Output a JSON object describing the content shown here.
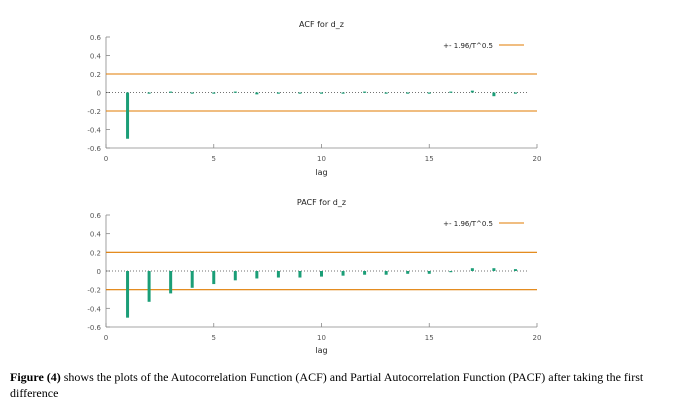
{
  "chart_data": [
    {
      "type": "bar",
      "title": "ACF for d_z",
      "xlabel": "lag",
      "ylabel": "",
      "xlim": [
        0,
        20
      ],
      "ylim": [
        -0.6,
        0.6
      ],
      "xticks": [
        "0",
        "5",
        "10",
        "15",
        "20"
      ],
      "yticks": [
        "0.6",
        "0.4",
        "0.2",
        "0",
        "-0.2",
        "-0.4",
        "-0.6"
      ],
      "legend": {
        "label": "+- 1.96/T^0.5",
        "position": "top-right"
      },
      "confidence_band": 0.2,
      "lags": [
        1,
        2,
        3,
        4,
        5,
        6,
        7,
        8,
        9,
        10,
        11,
        12,
        13,
        14,
        15,
        16,
        17,
        18,
        19
      ],
      "values": [
        -0.5,
        0.0,
        0.01,
        0.0,
        0.0,
        0.01,
        -0.02,
        0.0,
        0.0,
        0.0,
        0.0,
        0.01,
        -0.01,
        0.0,
        0.0,
        0.01,
        0.02,
        -0.04,
        0.0
      ],
      "colors": {
        "bars": "#1b9e77",
        "band": "#e07b00",
        "zero": "#444444"
      }
    },
    {
      "type": "bar",
      "title": "PACF for d_z",
      "xlabel": "lag",
      "ylabel": "",
      "xlim": [
        0,
        20
      ],
      "ylim": [
        -0.6,
        0.6
      ],
      "xticks": [
        "0",
        "5",
        "10",
        "15",
        "20"
      ],
      "yticks": [
        "0.6",
        "0.4",
        "0.2",
        "0",
        "-0.2",
        "-0.4",
        "-0.6"
      ],
      "legend": {
        "label": "+- 1.96/T^0.5",
        "position": "top-right"
      },
      "confidence_band": 0.2,
      "lags": [
        1,
        2,
        3,
        4,
        5,
        6,
        7,
        8,
        9,
        10,
        11,
        12,
        13,
        14,
        15,
        16,
        17,
        18,
        19
      ],
      "values": [
        -0.5,
        -0.33,
        -0.24,
        -0.18,
        -0.14,
        -0.1,
        -0.08,
        -0.07,
        -0.07,
        -0.06,
        -0.05,
        -0.04,
        -0.04,
        -0.03,
        -0.03,
        -0.01,
        0.03,
        0.03,
        0.02
      ],
      "colors": {
        "bars": "#1b9e77",
        "band": "#e07b00",
        "zero": "#444444"
      }
    }
  ],
  "caption": {
    "figure_label": "Figure (4)",
    "text": " shows the plots of the Autocorrelation Function (ACF) and Partial Autocorrelation Function (PACF) after taking the first difference"
  }
}
